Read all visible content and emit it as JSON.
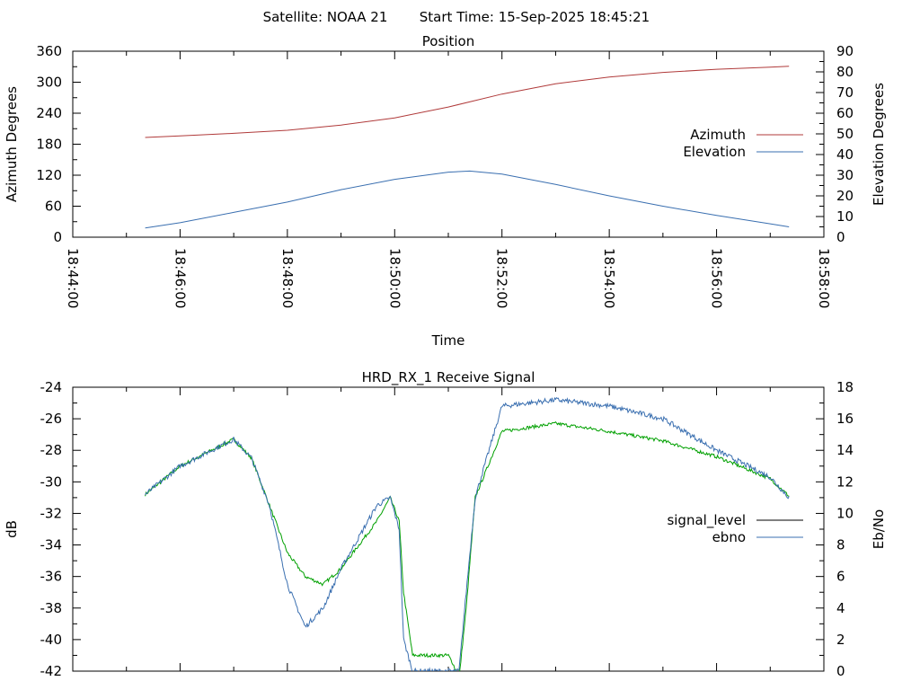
{
  "header": {
    "satellite": "Satellite: NOAA 21",
    "start_time": "Start Time: 15-Sep-2025 18:45:21"
  },
  "chart_data": [
    {
      "type": "line",
      "title": "Position",
      "xlabel": "Time",
      "ylabel": "Azimuth Degrees",
      "y2label": "Elevation Degrees",
      "xlim": [
        "18:44:00",
        "18:58:00"
      ],
      "xticks": [
        "18:44:00",
        "18:46:00",
        "18:48:00",
        "18:50:00",
        "18:52:00",
        "18:54:00",
        "18:56:00",
        "18:58:00"
      ],
      "ylim": [
        0,
        360
      ],
      "yticks": [
        0,
        60,
        120,
        180,
        240,
        300,
        360
      ],
      "y2lim": [
        0,
        90
      ],
      "y2ticks": [
        0,
        10,
        20,
        30,
        40,
        50,
        60,
        70,
        80,
        90
      ],
      "legend_position": "right",
      "grid": false,
      "series": [
        {
          "name": "Azimuth",
          "axis": "y",
          "color": "#b03a3a",
          "x": [
            "18:45:21",
            "18:46:00",
            "18:47:00",
            "18:48:00",
            "18:49:00",
            "18:50:00",
            "18:51:00",
            "18:52:00",
            "18:53:00",
            "18:54:00",
            "18:55:00",
            "18:56:00",
            "18:57:00",
            "18:57:21"
          ],
          "values": [
            193,
            196,
            201,
            207,
            217,
            231,
            252,
            277,
            297,
            310,
            319,
            325,
            329,
            331
          ]
        },
        {
          "name": "Elevation",
          "axis": "y2",
          "color": "#3a6fb0",
          "x": [
            "18:45:21",
            "18:46:00",
            "18:47:00",
            "18:48:00",
            "18:49:00",
            "18:50:00",
            "18:51:00",
            "18:51:24",
            "18:52:00",
            "18:53:00",
            "18:54:00",
            "18:55:00",
            "18:56:00",
            "18:57:00",
            "18:57:21"
          ],
          "values": [
            4.5,
            7,
            12,
            17,
            23,
            28,
            31.5,
            32,
            30.5,
            25.5,
            20,
            15,
            10.5,
            6.5,
            5
          ]
        }
      ]
    },
    {
      "type": "line",
      "title": "HRD_RX_1 Receive Signal",
      "ylabel": "dB",
      "y2label": "Eb/No",
      "xlim": [
        "18:44:00",
        "18:58:00"
      ],
      "ylim": [
        -42,
        -24
      ],
      "yticks": [
        -42,
        -40,
        -38,
        -36,
        -34,
        -32,
        -30,
        -28,
        -26,
        -24
      ],
      "y2lim": [
        0,
        18
      ],
      "y2ticks": [
        0,
        2,
        4,
        6,
        8,
        10,
        12,
        14,
        16,
        18
      ],
      "legend_position": "right",
      "grid": false,
      "series": [
        {
          "name": "signal_level",
          "axis": "y",
          "color": "#00a000",
          "x": [
            "18:45:21",
            "18:46:00",
            "18:47:00",
            "18:47:20",
            "18:47:40",
            "18:48:00",
            "18:48:20",
            "18:48:40",
            "18:49:00",
            "18:49:20",
            "18:49:40",
            "18:49:55",
            "18:50:05",
            "18:50:10",
            "18:50:20",
            "18:50:40",
            "18:51:00",
            "18:51:05",
            "18:51:12",
            "18:51:20",
            "18:51:30",
            "18:52:00",
            "18:53:00",
            "18:54:00",
            "18:55:00",
            "18:56:00",
            "18:57:00",
            "18:57:21"
          ],
          "values": [
            -30.8,
            -29.0,
            -27.3,
            -28.5,
            -31.5,
            -34.5,
            -36.0,
            -36.5,
            -35.5,
            -34.0,
            -32.5,
            -31.0,
            -32.5,
            -37.0,
            -41.0,
            -41.0,
            -41.0,
            -41.5,
            -42.5,
            -38.0,
            -31.0,
            -26.8,
            -26.3,
            -26.8,
            -27.4,
            -28.4,
            -29.8,
            -30.9
          ]
        },
        {
          "name": "ebno",
          "axis": "y2",
          "color": "#3a6fb0",
          "x": [
            "18:45:21",
            "18:46:00",
            "18:47:00",
            "18:47:20",
            "18:47:40",
            "18:48:00",
            "18:48:20",
            "18:48:40",
            "18:49:00",
            "18:49:20",
            "18:49:40",
            "18:49:55",
            "18:50:05",
            "18:50:10",
            "18:50:20",
            "18:50:40",
            "18:51:00",
            "18:51:05",
            "18:51:12",
            "18:51:20",
            "18:51:30",
            "18:52:00",
            "18:53:00",
            "18:54:00",
            "18:55:00",
            "18:56:00",
            "18:57:00",
            "18:57:21"
          ],
          "values": [
            11.2,
            13.0,
            14.7,
            13.5,
            10.5,
            5.5,
            2.8,
            4.0,
            6.5,
            8.5,
            10.5,
            11.0,
            9.0,
            2.0,
            0,
            0,
            0,
            0,
            0,
            5.0,
            11.0,
            16.8,
            17.2,
            16.8,
            16.0,
            14.0,
            12.3,
            11.0
          ]
        }
      ]
    }
  ]
}
